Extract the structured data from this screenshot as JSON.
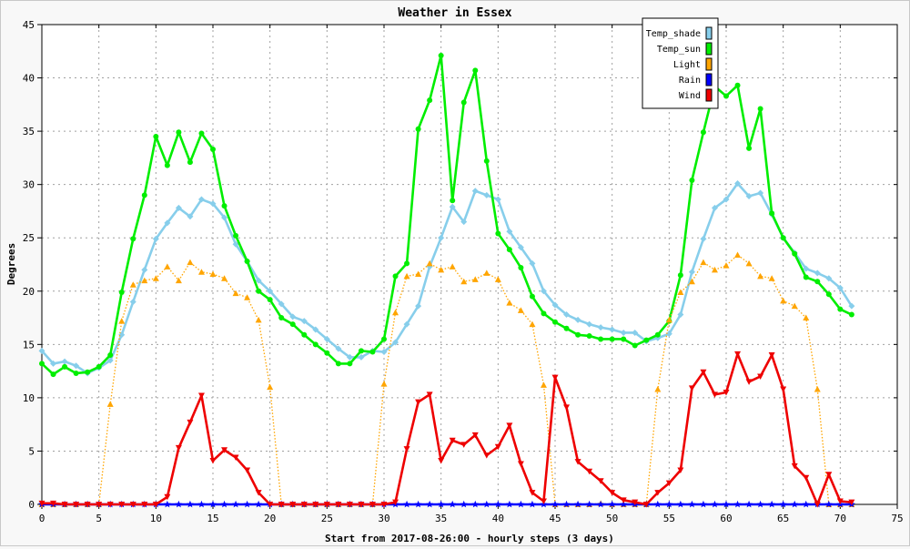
{
  "chart_data": {
    "type": "line",
    "title": "Weather in Essex",
    "xlabel": "Start from 2017-08-26:00 - hourly steps (3 days)",
    "ylabel": "Degrees",
    "xlim": [
      0,
      75
    ],
    "ylim": [
      0,
      45
    ],
    "xticks": [
      0,
      5,
      10,
      15,
      20,
      25,
      30,
      35,
      40,
      45,
      50,
      55,
      60,
      65,
      70,
      75
    ],
    "yticks": [
      0,
      5,
      10,
      15,
      20,
      25,
      30,
      35,
      40,
      45
    ],
    "grid": true,
    "legend_position": "top-right",
    "x": [
      0,
      1,
      2,
      3,
      4,
      5,
      6,
      7,
      8,
      9,
      10,
      11,
      12,
      13,
      14,
      15,
      16,
      17,
      18,
      19,
      20,
      21,
      22,
      23,
      24,
      25,
      26,
      27,
      28,
      29,
      30,
      31,
      32,
      33,
      34,
      35,
      36,
      37,
      38,
      39,
      40,
      41,
      42,
      43,
      44,
      45,
      46,
      47,
      48,
      49,
      50,
      51,
      52,
      53,
      54,
      55,
      56,
      57,
      58,
      59,
      60,
      61,
      62,
      63,
      64,
      65,
      66,
      67,
      68,
      69,
      70,
      71
    ],
    "series": [
      {
        "name": "Temp_shade",
        "color": "#87ceeb",
        "marker": "diamond",
        "line": "solid",
        "values": [
          14.4,
          13.2,
          13.4,
          13.0,
          12.3,
          12.8,
          13.5,
          15.9,
          19.0,
          22.0,
          24.9,
          26.4,
          27.8,
          27.0,
          28.6,
          28.2,
          26.9,
          24.4,
          22.8,
          21.0,
          20.0,
          18.8,
          17.6,
          17.2,
          16.4,
          15.5,
          14.6,
          13.8,
          13.8,
          14.4,
          14.3,
          15.2,
          16.9,
          18.6,
          22.3,
          25.0,
          27.9,
          26.5,
          29.4,
          29.0,
          28.6,
          25.6,
          24.1,
          22.6,
          20.0,
          18.7,
          17.8,
          17.3,
          16.9,
          16.6,
          16.4,
          16.1,
          16.1,
          15.3,
          15.6,
          16.0,
          17.8,
          21.8,
          24.9,
          27.8,
          28.6,
          30.1,
          28.9,
          29.2,
          27.2,
          25.0,
          23.6,
          22.1,
          21.7,
          21.2,
          20.3,
          18.6
        ]
      },
      {
        "name": "Temp_sun",
        "color": "#00ee00",
        "marker": "circle",
        "line": "solid",
        "values": [
          13.2,
          12.2,
          12.9,
          12.3,
          12.4,
          12.9,
          14.0,
          19.9,
          24.9,
          29.0,
          34.5,
          31.8,
          34.9,
          32.1,
          34.8,
          33.3,
          28.0,
          25.2,
          22.8,
          20.0,
          19.2,
          17.5,
          16.9,
          15.9,
          15.0,
          14.2,
          13.2,
          13.2,
          14.4,
          14.3,
          15.5,
          21.4,
          22.6,
          35.2,
          37.9,
          42.1,
          28.5,
          37.7,
          40.7,
          32.2,
          25.4,
          23.9,
          22.2,
          19.5,
          17.9,
          17.1,
          16.5,
          15.9,
          15.8,
          15.5,
          15.5,
          15.5,
          14.9,
          15.4,
          15.9,
          17.2,
          21.5,
          30.4,
          34.9,
          39.2,
          38.3,
          39.3,
          33.4,
          37.1,
          27.3,
          25.0,
          23.5,
          21.3,
          20.9,
          19.7,
          18.3,
          17.8
        ]
      },
      {
        "name": "Light",
        "color": "#ffa500",
        "marker": "triangle-up",
        "line": "dotted",
        "values": [
          0,
          0,
          0,
          0,
          0,
          0,
          9.4,
          17.2,
          20.6,
          21.0,
          21.2,
          22.3,
          21.0,
          22.7,
          21.8,
          21.6,
          21.2,
          19.8,
          19.4,
          17.3,
          11.0,
          0,
          0,
          0,
          0,
          0,
          0,
          0,
          0,
          0,
          11.3,
          18.0,
          21.4,
          21.6,
          22.6,
          22.0,
          22.3,
          20.9,
          21.1,
          21.7,
          21.1,
          18.9,
          18.2,
          16.9,
          11.2,
          0,
          0,
          0,
          0,
          0.1,
          0,
          0,
          0,
          0,
          10.8,
          17.3,
          19.9,
          20.9,
          22.7,
          22.0,
          22.4,
          23.4,
          22.6,
          21.4,
          21.2,
          19.1,
          18.6,
          17.5,
          10.8,
          0,
          0,
          0
        ]
      },
      {
        "name": "Rain",
        "color": "#0000ff",
        "marker": "star",
        "line": "solid",
        "values": [
          0,
          0,
          0,
          0,
          0,
          0,
          0,
          0,
          0,
          0,
          0,
          0,
          0,
          0,
          0,
          0,
          0,
          0,
          0,
          0,
          0,
          0,
          0,
          0,
          0,
          0,
          0,
          0,
          0,
          0,
          0,
          0,
          0,
          0,
          0,
          0,
          0,
          0,
          0,
          0,
          0,
          0,
          0,
          0,
          0,
          0,
          0,
          0,
          0,
          0,
          0,
          0,
          0,
          0,
          0,
          0,
          0,
          0,
          0,
          0,
          0,
          0,
          0,
          0,
          0,
          0,
          0,
          0,
          0,
          0,
          0,
          0
        ]
      },
      {
        "name": "Wind",
        "color": "#ee0000",
        "marker": "triangle-down",
        "line": "solid",
        "values": [
          0.1,
          0.1,
          0,
          0,
          0,
          0,
          0,
          0,
          0,
          0,
          0,
          0.7,
          5.3,
          7.7,
          10.2,
          4.1,
          5.1,
          4.4,
          3.2,
          1.1,
          0,
          0,
          0,
          0,
          0,
          0,
          0,
          0,
          0,
          0,
          0,
          0.2,
          5.2,
          9.6,
          10.3,
          4.1,
          6.0,
          5.6,
          6.5,
          4.6,
          5.4,
          7.4,
          3.8,
          1.1,
          0.3,
          11.9,
          9.1,
          4.0,
          3.1,
          2.2,
          1.1,
          0.4,
          0.2,
          0,
          1.1,
          2.0,
          3.2,
          10.9,
          12.4,
          10.3,
          10.5,
          14.1,
          11.5,
          12.0,
          14.0,
          10.8,
          3.6,
          2.5,
          0,
          2.8,
          0.3,
          0.2
        ]
      }
    ]
  }
}
